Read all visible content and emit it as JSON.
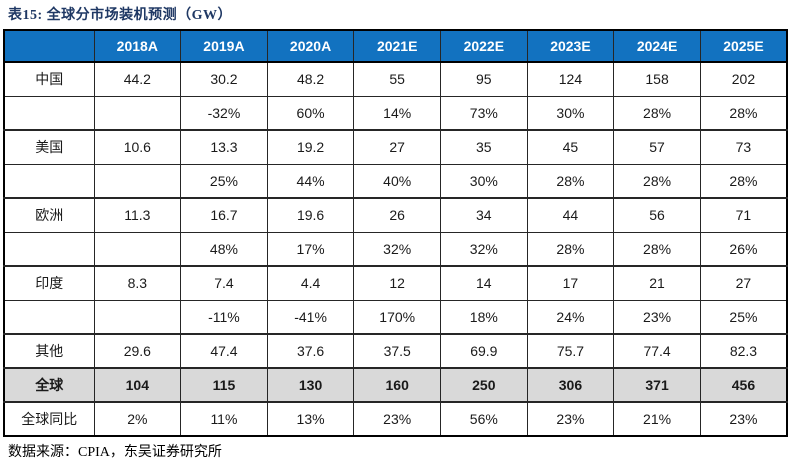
{
  "title": "表15:  全球分市场装机预测（GW）",
  "source": "数据来源：CPIA，东吴证券研究所",
  "colors": {
    "header_bg": "#1272c0",
    "header_text": "#ffffff",
    "total_row_bg": "#d9d9d9",
    "title_color": "#1f3864",
    "border": "#262626"
  },
  "chart_data": {
    "type": "table",
    "title": "表15: 全球分市场装机预测（GW）",
    "columns": [
      "2018A",
      "2019A",
      "2020A",
      "2021E",
      "2022E",
      "2023E",
      "2024E",
      "2025E"
    ],
    "rows": [
      {
        "label": "中国",
        "type": "value",
        "values": [
          "44.2",
          "30.2",
          "48.2",
          "55",
          "95",
          "124",
          "158",
          "202"
        ]
      },
      {
        "label": "",
        "type": "growth",
        "values": [
          "",
          "-32%",
          "60%",
          "14%",
          "73%",
          "30%",
          "28%",
          "28%"
        ]
      },
      {
        "label": "美国",
        "type": "value",
        "values": [
          "10.6",
          "13.3",
          "19.2",
          "27",
          "35",
          "45",
          "57",
          "73"
        ]
      },
      {
        "label": "",
        "type": "growth",
        "values": [
          "",
          "25%",
          "44%",
          "40%",
          "30%",
          "28%",
          "28%",
          "28%"
        ]
      },
      {
        "label": "欧洲",
        "type": "value",
        "values": [
          "11.3",
          "16.7",
          "19.6",
          "26",
          "34",
          "44",
          "56",
          "71"
        ]
      },
      {
        "label": "",
        "type": "growth",
        "values": [
          "",
          "48%",
          "17%",
          "32%",
          "32%",
          "28%",
          "28%",
          "26%"
        ]
      },
      {
        "label": "印度",
        "type": "value",
        "values": [
          "8.3",
          "7.4",
          "4.4",
          "12",
          "14",
          "17",
          "21",
          "27"
        ]
      },
      {
        "label": "",
        "type": "growth",
        "values": [
          "",
          "-11%",
          "-41%",
          "170%",
          "18%",
          "24%",
          "23%",
          "25%"
        ]
      },
      {
        "label": "其他",
        "type": "value",
        "values": [
          "29.6",
          "47.4",
          "37.6",
          "37.5",
          "69.9",
          "75.7",
          "77.4",
          "82.3"
        ]
      },
      {
        "label": "全球",
        "type": "total",
        "values": [
          "104",
          "115",
          "130",
          "160",
          "250",
          "306",
          "371",
          "456"
        ]
      },
      {
        "label": "全球同比",
        "type": "value",
        "values": [
          "2%",
          "11%",
          "13%",
          "23%",
          "56%",
          "23%",
          "21%",
          "23%"
        ]
      }
    ]
  }
}
